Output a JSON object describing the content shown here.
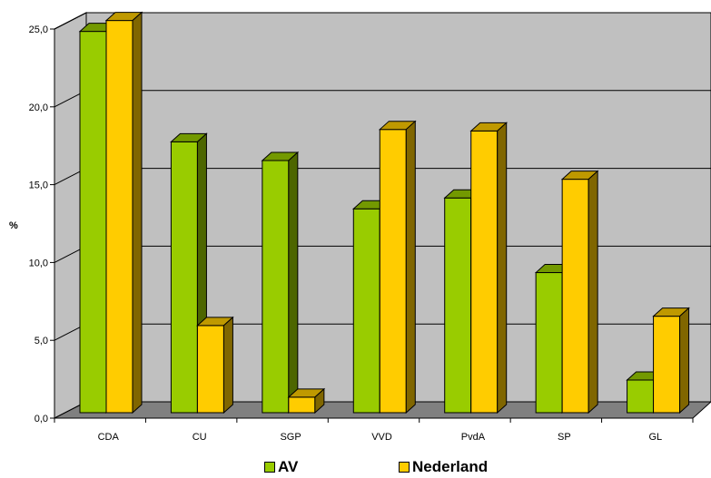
{
  "chart_data": {
    "type": "bar",
    "ylabel": "%",
    "ylim": [
      0,
      25
    ],
    "yticks": [
      "0,0",
      "5,0",
      "10,0",
      "15,0",
      "20,0",
      "25,0"
    ],
    "categories": [
      "CDA",
      "CU",
      "SGP",
      "VVD",
      "PvdA",
      "SP",
      "GL"
    ],
    "series": [
      {
        "name": "AV",
        "color": "#99cc00",
        "values": [
          24.5,
          17.4,
          16.2,
          13.1,
          13.8,
          9.0,
          2.1
        ]
      },
      {
        "name": "Nederland",
        "color": "#ffcc00",
        "values": [
          25.2,
          5.6,
          1.0,
          18.2,
          18.1,
          15.0,
          6.2
        ]
      }
    ],
    "grid": true,
    "legend_position": "bottom"
  }
}
